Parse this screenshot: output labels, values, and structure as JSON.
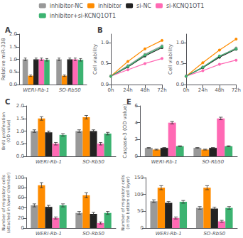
{
  "chart_data": [
    {
      "type": "bar",
      "title": "A",
      "ylabel": "Relative miR-338",
      "categories": [
        "WERI-Rb-1",
        "SO-Rb50"
      ],
      "ylim": [
        0,
        2.0
      ],
      "yticks": [
        {
          "value": 0,
          "label": "0.0"
        },
        0.5,
        {
          "value": 1.0,
          "label": "1.0"
        },
        1.5,
        {
          "value": 2.0,
          "label": "2.0"
        }
      ],
      "grid": false,
      "legend": "top",
      "series": [
        {
          "name": "inhibitor-NC",
          "color": "#999999",
          "values": [
            1.0,
            1.0
          ],
          "errors": [
            0.05,
            0.05
          ]
        },
        {
          "name": "inhibitor",
          "color": "#FF8C00",
          "values": [
            0.35,
            0.35
          ],
          "errors": [
            0.03,
            0.03
          ]
        },
        {
          "name": "si-NC",
          "color": "#222222",
          "values": [
            1.0,
            1.0
          ],
          "errors": [
            0.05,
            0.05
          ]
        },
        {
          "name": "si-KCNQ1OT1",
          "color": "#FF69B4",
          "values": [
            1.0,
            1.0
          ],
          "errors": [
            0.05,
            0.05
          ]
        },
        {
          "name": "inhibitor+si-KCNQ1OT1",
          "color": "#3CB371",
          "values": [
            0.98,
            0.98
          ],
          "errors": [
            0.05,
            0.05
          ]
        }
      ]
    },
    {
      "type": "line",
      "title": "B",
      "ylabel": "Cell viability",
      "x": [
        0,
        24,
        48,
        72
      ],
      "xlim": [
        0,
        72
      ],
      "xticks": [
        {
          "value": 0,
          "label": "0h"
        },
        {
          "value": 24,
          "label": "24h"
        },
        {
          "value": 48,
          "label": "48h"
        },
        {
          "value": 72,
          "label": "72h"
        }
      ],
      "ylim": [
        0,
        1.2
      ],
      "yticks": [
        {
          "value": 0,
          "label": "0.0"
        },
        0.5,
        {
          "value": 1.0,
          "label": "1.0"
        }
      ],
      "grid": false,
      "marker": "circle",
      "series": [
        {
          "name": "inhibitor-NC",
          "color": "#999999",
          "values": [
            0.2,
            0.45,
            0.72,
            0.92
          ]
        },
        {
          "name": "inhibitor",
          "color": "#FF8C00",
          "values": [
            0.2,
            0.55,
            0.85,
            1.05
          ]
        },
        {
          "name": "si-NC",
          "color": "#222222",
          "values": [
            0.2,
            0.42,
            0.68,
            0.88
          ]
        },
        {
          "name": "si-KCNQ1OT1",
          "color": "#FF69B4",
          "values": [
            0.2,
            0.35,
            0.5,
            0.62
          ]
        },
        {
          "name": "inhibitor+si-KCNQ1OT1",
          "color": "#3CB371",
          "values": [
            0.2,
            0.43,
            0.7,
            0.9
          ]
        }
      ]
    },
    {
      "type": "line",
      "ylabel": "Cell viability",
      "x": [
        0,
        24,
        48,
        72
      ],
      "xlim": [
        0,
        72
      ],
      "xticks": [
        {
          "value": 0,
          "label": "0h"
        },
        {
          "value": 24,
          "label": "24h"
        },
        {
          "value": 48,
          "label": "48h"
        },
        {
          "value": 72,
          "label": "72h"
        }
      ],
      "ylim": [
        0,
        1.2
      ],
      "yticks": [
        {
          "value": 0,
          "label": "0.0"
        },
        0.5,
        {
          "value": 1.0,
          "label": "1.0"
        }
      ],
      "grid": false,
      "marker": "circle",
      "series": [
        {
          "name": "inhibitor-NC",
          "color": "#999999",
          "values": [
            0.2,
            0.42,
            0.67,
            0.87
          ]
        },
        {
          "name": "inhibitor",
          "color": "#FF8C00",
          "values": [
            0.2,
            0.52,
            0.82,
            1.08
          ]
        },
        {
          "name": "si-NC",
          "color": "#222222",
          "values": [
            0.2,
            0.4,
            0.65,
            0.84
          ]
        },
        {
          "name": "si-KCNQ1OT1",
          "color": "#FF69B4",
          "values": [
            0.2,
            0.33,
            0.48,
            0.58
          ]
        },
        {
          "name": "inhibitor+si-KCNQ1OT1",
          "color": "#3CB371",
          "values": [
            0.2,
            0.41,
            0.68,
            0.85
          ]
        }
      ]
    },
    {
      "type": "bar",
      "title": "C",
      "ylabel": "BrdU proliferation\n(OD value)",
      "categories": [
        "WERI-Rb-1",
        "SO-Rb50"
      ],
      "ylim": [
        0,
        2.0
      ],
      "yticks": [
        {
          "value": 0.0,
          "label": "0.0"
        },
        0.5,
        {
          "value": 1.0,
          "label": "1.0"
        },
        1.5,
        {
          "value": 2.0,
          "label": "2.0"
        }
      ],
      "grid": false,
      "series": [
        {
          "name": "inhibitor-NC",
          "color": "#999999",
          "values": [
            1.0,
            1.0
          ],
          "errors": [
            0.05,
            0.05
          ]
        },
        {
          "name": "inhibitor",
          "color": "#FF8C00",
          "values": [
            1.5,
            1.55
          ],
          "errors": [
            0.07,
            0.07
          ]
        },
        {
          "name": "si-NC",
          "color": "#222222",
          "values": [
            0.95,
            1.0
          ],
          "errors": [
            0.05,
            0.05
          ]
        },
        {
          "name": "si-KCNQ1OT1",
          "color": "#FF69B4",
          "values": [
            0.5,
            0.5
          ],
          "errors": [
            0.05,
            0.05
          ]
        },
        {
          "name": "inhibitor+si-KCNQ1OT1",
          "color": "#3CB371",
          "values": [
            0.85,
            0.9
          ],
          "errors": [
            0.05,
            0.05
          ]
        }
      ]
    },
    {
      "type": "bar",
      "title": "E",
      "ylabel": "Caspase-3 (OD value)",
      "categories": [
        "WERI-Rb-1",
        "SO-Rb50"
      ],
      "ylim": [
        0,
        6
      ],
      "yticks": [
        0,
        2,
        4,
        6
      ],
      "grid": false,
      "series": [
        {
          "name": "inhibitor-NC",
          "color": "#999999",
          "values": [
            1.0,
            1.0
          ],
          "errors": [
            0.05,
            0.05
          ]
        },
        {
          "name": "inhibitor",
          "color": "#FF8C00",
          "values": [
            0.8,
            0.8
          ],
          "errors": [
            0.05,
            0.05
          ]
        },
        {
          "name": "si-NC",
          "color": "#222222",
          "values": [
            1.0,
            1.0
          ],
          "errors": [
            0.05,
            0.05
          ]
        },
        {
          "name": "si-KCNQ1OT1",
          "color": "#FF69B4",
          "values": [
            4.0,
            4.5
          ],
          "errors": [
            0.15,
            0.15
          ]
        },
        {
          "name": "inhibitor+si-KCNQ1OT1",
          "color": "#3CB371",
          "values": [
            1.2,
            1.2
          ],
          "errors": [
            0.05,
            0.05
          ]
        }
      ]
    },
    {
      "type": "bar",
      "ylabel": "Number of migratory cells\n(attached in lower chamber)",
      "categories": [
        "WERI-Rb-1",
        "SO-Rb50"
      ],
      "ylim": [
        0,
        100
      ],
      "yticks": [
        0,
        20,
        40,
        60,
        80,
        100
      ],
      "grid": false,
      "series": [
        {
          "name": "inhibitor-NC",
          "color": "#999999",
          "values": [
            45,
            30
          ],
          "errors": [
            3,
            3
          ]
        },
        {
          "name": "inhibitor",
          "color": "#FF8C00",
          "values": [
            85,
            65
          ],
          "errors": [
            5,
            5
          ]
        },
        {
          "name": "si-NC",
          "color": "#222222",
          "values": [
            42,
            28
          ],
          "errors": [
            3,
            3
          ]
        },
        {
          "name": "si-KCNQ1OT1",
          "color": "#FF69B4",
          "values": [
            20,
            10
          ],
          "errors": [
            2,
            2
          ]
        },
        {
          "name": "inhibitor+si-KCNQ1OT1",
          "color": "#3CB371",
          "values": [
            45,
            30
          ],
          "errors": [
            3,
            3
          ]
        }
      ]
    },
    {
      "type": "bar",
      "ylabel": "Number of migratory cells\n(in the bottom cell layer)",
      "categories": [
        "WERI-Rb-1",
        "SO-Rb50"
      ],
      "ylim": [
        0,
        150
      ],
      "yticks": [
        0,
        50,
        100,
        150
      ],
      "grid": false,
      "series": [
        {
          "name": "inhibitor-NC",
          "color": "#999999",
          "values": [
            80,
            60
          ],
          "errors": [
            4,
            4
          ]
        },
        {
          "name": "inhibitor",
          "color": "#FF8C00",
          "values": [
            120,
            120
          ],
          "errors": [
            6,
            6
          ]
        },
        {
          "name": "si-NC",
          "color": "#222222",
          "values": [
            75,
            58
          ],
          "errors": [
            4,
            4
          ]
        },
        {
          "name": "si-KCNQ1OT1",
          "color": "#FF69B4",
          "values": [
            30,
            20
          ],
          "errors": [
            3,
            3
          ]
        },
        {
          "name": "inhibitor+si-KCNQ1OT1",
          "color": "#3CB371",
          "values": [
            78,
            60
          ],
          "errors": [
            4,
            4
          ]
        }
      ]
    }
  ]
}
